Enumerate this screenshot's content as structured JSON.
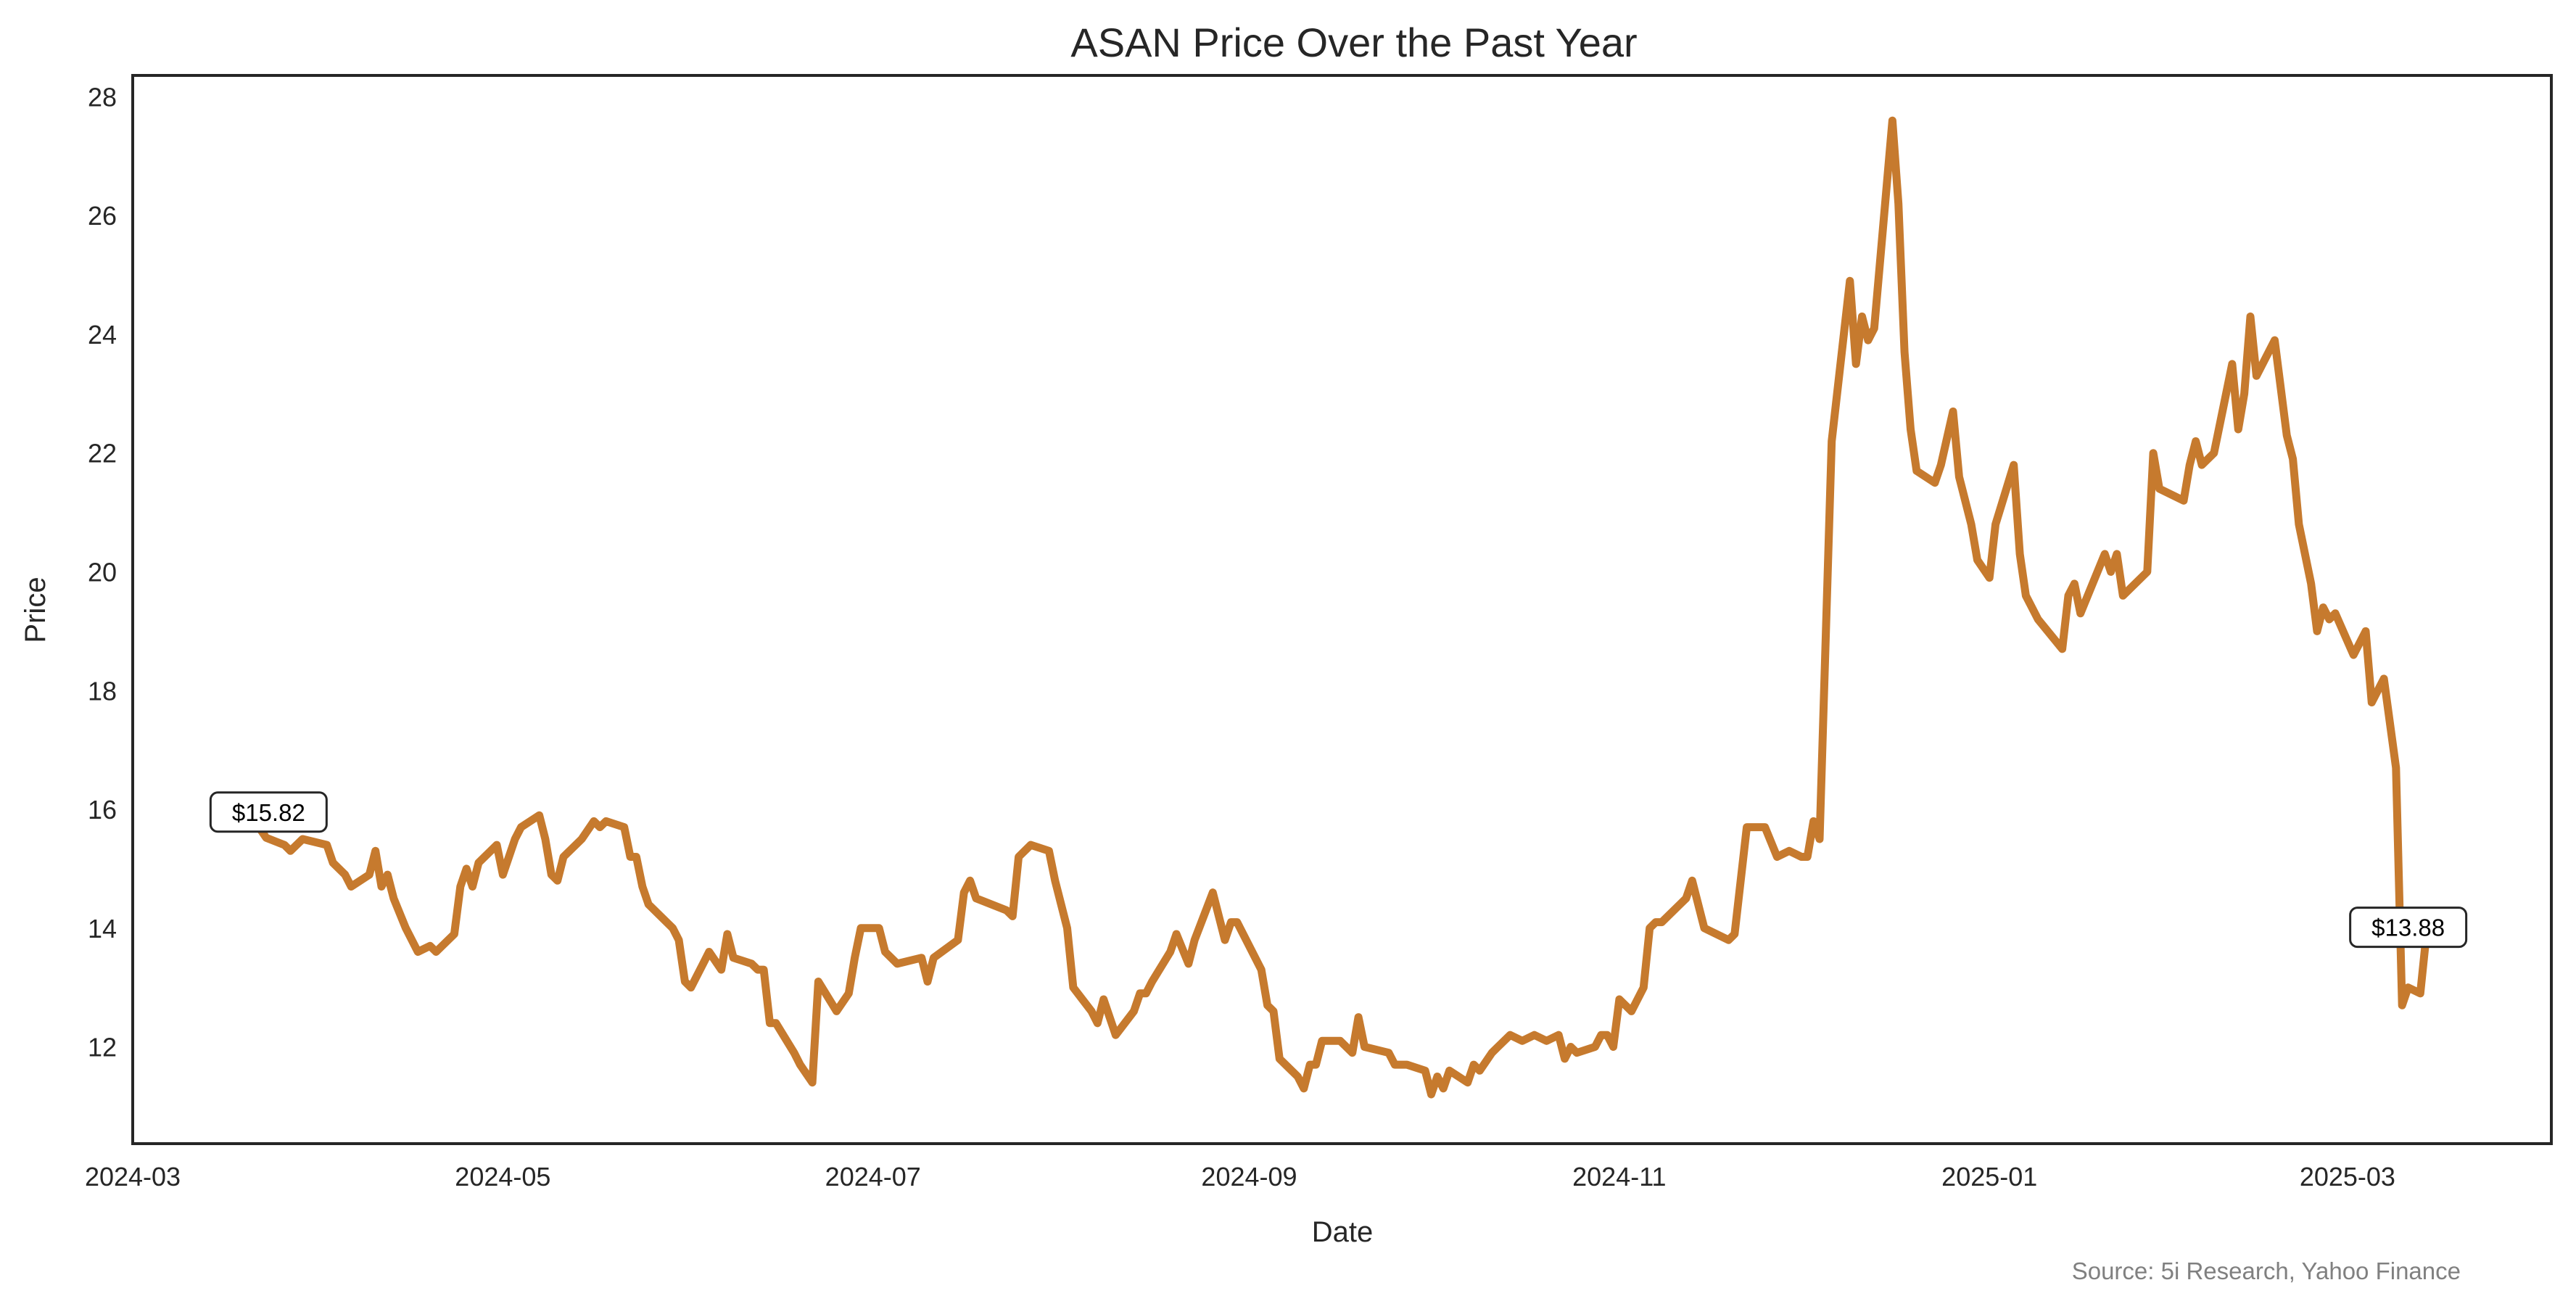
{
  "chart_data": {
    "type": "line",
    "title": "ASAN Price Over the Past Year",
    "xlabel": "Date",
    "ylabel": "Price",
    "x_origin": "2024-03-01",
    "x_units": "days since 2024-03-01",
    "xlim": [
      0,
      398.6
    ],
    "ylim": [
      10.37,
      28.36
    ],
    "grid": false,
    "line_color": "#C67A2E",
    "x_ticks": [
      {
        "day": 0,
        "label": "2024-03"
      },
      {
        "day": 61,
        "label": "2024-05"
      },
      {
        "day": 122,
        "label": "2024-07"
      },
      {
        "day": 184,
        "label": "2024-09"
      },
      {
        "day": 245,
        "label": "2024-11"
      },
      {
        "day": 306,
        "label": "2025-01"
      },
      {
        "day": 365,
        "label": "2025-03"
      }
    ],
    "y_ticks": [
      "12",
      "14",
      "16",
      "18",
      "20",
      "22",
      "24",
      "26",
      "28"
    ],
    "series": [
      {
        "name": "ASAN",
        "x": [
          20,
          22,
          25,
          26,
          28,
          32,
          33,
          35,
          36,
          39,
          40,
          41,
          42,
          43,
          45,
          47,
          49,
          50,
          53,
          54,
          55,
          56,
          57,
          60,
          61,
          63,
          64,
          67,
          68,
          69,
          70,
          71,
          74,
          76,
          77,
          78,
          81,
          82,
          83,
          84,
          85,
          89,
          90,
          91,
          92,
          94,
          95,
          97,
          98,
          99,
          102,
          103,
          104,
          105,
          106,
          109,
          110,
          112,
          113,
          116,
          118,
          119,
          120,
          123,
          124,
          126,
          130,
          131,
          132,
          136,
          137,
          138,
          139,
          144,
          145,
          146,
          148,
          151,
          152,
          154,
          155,
          158,
          159,
          160,
          162,
          165,
          166,
          167,
          168,
          171,
          172,
          174,
          175,
          178,
          180,
          181,
          182,
          186,
          187,
          188,
          189,
          192,
          193,
          194,
          195,
          196,
          199,
          201,
          202,
          203,
          207,
          208,
          210,
          213,
          214,
          215,
          216,
          217,
          220,
          221,
          222,
          224,
          225,
          227,
          229,
          231,
          233,
          235,
          236,
          237,
          238,
          241,
          242,
          243,
          244,
          245,
          247,
          249,
          250,
          251,
          252,
          255,
          256,
          257,
          259,
          263,
          264,
          266,
          269,
          271,
          273,
          275,
          276,
          277,
          278,
          280,
          283,
          284,
          285,
          286,
          287,
          290,
          291,
          292,
          293,
          294,
          297,
          298,
          300,
          301,
          303,
          304,
          306,
          307,
          310,
          311,
          312,
          314,
          318,
          319,
          320,
          321,
          325,
          326,
          327,
          328,
          332,
          333,
          334,
          338,
          339,
          340,
          341,
          343,
          346,
          347,
          348,
          349,
          350,
          353,
          355,
          356,
          357,
          359,
          360,
          361,
          362,
          363,
          366,
          368,
          369,
          371,
          373,
          374,
          375,
          377,
          378
        ],
        "values": [
          15.82,
          15.52,
          15.4,
          15.3,
          15.5,
          15.4,
          15.1,
          14.9,
          14.7,
          14.9,
          15.3,
          14.7,
          14.9,
          14.5,
          14.0,
          13.6,
          13.7,
          13.6,
          13.9,
          14.7,
          15.0,
          14.7,
          15.1,
          15.4,
          14.9,
          15.5,
          15.7,
          15.9,
          15.5,
          14.9,
          14.8,
          15.2,
          15.5,
          15.8,
          15.7,
          15.8,
          15.7,
          15.2,
          15.2,
          14.7,
          14.4,
          14.0,
          13.8,
          13.1,
          13.0,
          13.4,
          13.6,
          13.3,
          13.9,
          13.5,
          13.4,
          13.3,
          13.3,
          12.4,
          12.4,
          11.9,
          11.7,
          11.4,
          13.1,
          12.6,
          12.9,
          13.5,
          14.0,
          14.0,
          13.6,
          13.4,
          13.5,
          13.1,
          13.5,
          13.8,
          14.6,
          14.8,
          14.5,
          14.3,
          14.2,
          15.2,
          15.4,
          15.3,
          14.8,
          14.0,
          13.0,
          12.6,
          12.4,
          12.8,
          12.2,
          12.6,
          12.9,
          12.9,
          13.1,
          13.6,
          13.9,
          13.4,
          13.8,
          14.6,
          13.8,
          14.1,
          14.1,
          13.3,
          12.7,
          12.6,
          11.8,
          11.5,
          11.3,
          11.7,
          11.7,
          12.1,
          12.1,
          11.9,
          12.5,
          12.0,
          11.9,
          11.7,
          11.7,
          11.6,
          11.2,
          11.5,
          11.3,
          11.6,
          11.4,
          11.7,
          11.6,
          11.9,
          12.0,
          12.2,
          12.1,
          12.2,
          12.1,
          12.2,
          11.8,
          12.0,
          11.9,
          12.0,
          12.2,
          12.2,
          12.0,
          12.8,
          12.6,
          13.0,
          14.0,
          14.1,
          14.1,
          14.4,
          14.5,
          14.8,
          14.0,
          13.8,
          13.9,
          15.7,
          15.7,
          15.2,
          15.3,
          15.2,
          15.2,
          15.8,
          15.5,
          22.2,
          24.9,
          23.5,
          24.3,
          23.9,
          24.1,
          27.6,
          26.2,
          23.7,
          22.4,
          21.7,
          21.5,
          21.8,
          22.7,
          21.6,
          20.8,
          20.2,
          19.9,
          20.8,
          21.8,
          20.3,
          19.6,
          19.2,
          18.7,
          19.6,
          19.8,
          19.3,
          20.3,
          20.0,
          20.3,
          19.6,
          20.0,
          22.0,
          21.4,
          21.2,
          21.8,
          22.2,
          21.8,
          22.0,
          23.5,
          22.4,
          23.0,
          24.3,
          23.3,
          23.9,
          22.3,
          21.9,
          20.8,
          19.8,
          19.0,
          19.4,
          19.2,
          19.3,
          18.6,
          19.0,
          17.8,
          18.2,
          16.7,
          12.7,
          13.0,
          12.9,
          13.88
        ]
      }
    ],
    "annotations": [
      {
        "text": "$15.82",
        "day": 20,
        "value": 15.82
      },
      {
        "text": "$13.88",
        "day": 378,
        "value": 13.88
      }
    ],
    "source": "Source: 5i Research, Yahoo Finance"
  }
}
